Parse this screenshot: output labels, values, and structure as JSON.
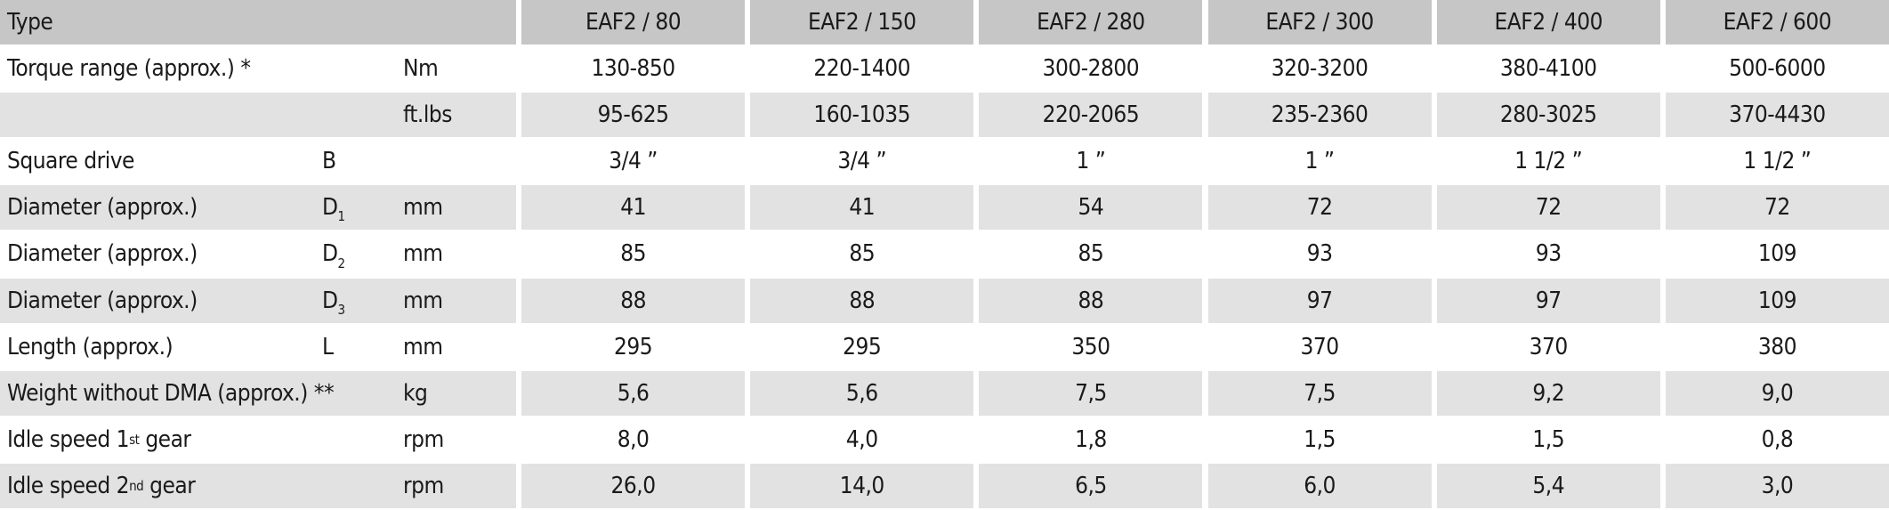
{
  "header": {
    "type": "Type",
    "models": [
      "EAF2 / 80",
      "EAF2 / 150",
      "EAF2 / 280",
      "EAF2 / 300",
      "EAF2 / 400",
      "EAF2 / 600"
    ]
  },
  "rows": [
    {
      "label": {
        "text": "Torque range (approx.) *"
      },
      "unit": "Nm",
      "values": [
        "130-850",
        "220-1400",
        "300-2800",
        "320-3200",
        "380-4100",
        "500-6000"
      ]
    },
    {
      "unit": "ft.lbs",
      "values": [
        "95-625",
        "160-1035",
        "220-2065",
        "235-2360",
        "280-3025",
        "370-4430"
      ]
    },
    {
      "label": {
        "text": "Square drive"
      },
      "symbol": {
        "text": "B"
      },
      "values": [
        "3/4 ”",
        "3/4 ”",
        "1 ”",
        "1 ”",
        "1 1/2 ”",
        "1 1/2 ”"
      ]
    },
    {
      "label": {
        "text": "Diameter (approx.)"
      },
      "symbol": {
        "text": "D",
        "sub": "1"
      },
      "unit": "mm",
      "values": [
        "41",
        "41",
        "54",
        "72",
        "72",
        "72"
      ]
    },
    {
      "label": {
        "text": "Diameter (approx.)"
      },
      "symbol": {
        "text": "D",
        "sub": "2"
      },
      "unit": "mm",
      "values": [
        "85",
        "85",
        "85",
        "93",
        "93",
        "109"
      ]
    },
    {
      "label": {
        "text": "Diameter (approx.)"
      },
      "symbol": {
        "text": "D",
        "sub": "3"
      },
      "unit": "mm",
      "values": [
        "88",
        "88",
        "88",
        "97",
        "97",
        "109"
      ]
    },
    {
      "label": {
        "text": "Length (approx.)"
      },
      "symbol": {
        "text": "L"
      },
      "unit": "mm",
      "values": [
        "295",
        "295",
        "350",
        "370",
        "370",
        "380"
      ]
    },
    {
      "label": {
        "text": "Weight without DMA (approx.) **"
      },
      "unit": "kg",
      "values": [
        "5,6",
        "5,6",
        "7,5",
        "7,5",
        "9,2",
        "9,0"
      ]
    },
    {
      "label": {
        "text": "Idle speed 1",
        "sup": "st",
        "after": " gear"
      },
      "unit": "rpm",
      "values": [
        "8,0",
        "4,0",
        "1,8",
        "1,5",
        "1,5",
        "0,8"
      ]
    },
    {
      "label": {
        "text": "Idle speed 2",
        "sup": "nd",
        "after": " gear"
      },
      "unit": "rpm",
      "values": [
        "26,0",
        "14,0",
        "6,5",
        "6,0",
        "5,4",
        "3,0"
      ]
    }
  ]
}
